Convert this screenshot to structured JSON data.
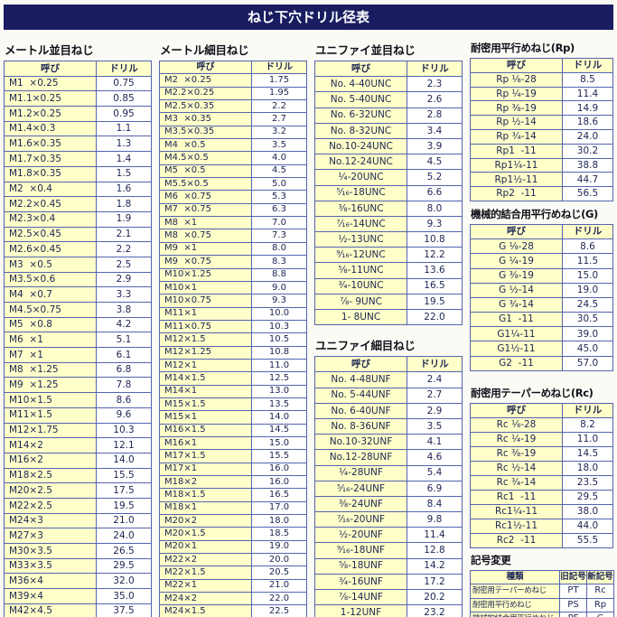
{
  "title": "ねじ下穴ドリル径表",
  "colors": {
    "title_bg": "#191d60",
    "title_text": "#ffffff",
    "header_bg": "#ffffc9",
    "border": "#5464b0",
    "text": "#1d2552",
    "heading_text": "#101019",
    "page_bg": "#fbfbf6"
  },
  "tables": {
    "metric_coarse": {
      "heading": "メートル並目ねじ",
      "col_headers": [
        "呼び",
        "ドリル"
      ],
      "rows": [
        [
          "M1  ×0.25",
          "0.75"
        ],
        [
          "M1.1×0.25",
          "0.85"
        ],
        [
          "M1.2×0.25",
          "0.95"
        ],
        [
          "M1.4×0.3",
          "1.1"
        ],
        [
          "M1.6×0.35",
          "1.3"
        ],
        [
          "M1.7×0.35",
          "1.4"
        ],
        [
          "M1.8×0.35",
          "1.5"
        ],
        [
          "M2  ×0.4",
          "1.6"
        ],
        [
          "M2.2×0.45",
          "1.8"
        ],
        [
          "M2.3×0.4",
          "1.9"
        ],
        [
          "M2.5×0.45",
          "2.1"
        ],
        [
          "M2.6×0.45",
          "2.2"
        ],
        [
          "M3  ×0.5",
          "2.5"
        ],
        [
          "M3.5×0.6",
          "2.9"
        ],
        [
          "M4  ×0.7",
          "3.3"
        ],
        [
          "M4.5×0.75",
          "3.8"
        ],
        [
          "M5  ×0.8",
          "4.2"
        ],
        [
          "M6  ×1",
          "5.1"
        ],
        [
          "M7  ×1",
          "6.1"
        ],
        [
          "M8  ×1.25",
          "6.8"
        ],
        [
          "M9  ×1.25",
          "7.8"
        ],
        [
          "M10×1.5",
          "8.6"
        ],
        [
          "M11×1.5",
          "9.6"
        ],
        [
          "M12×1.75",
          "10.3"
        ],
        [
          "M14×2",
          "12.1"
        ],
        [
          "M16×2",
          "14.0"
        ],
        [
          "M18×2.5",
          "15.5"
        ],
        [
          "M20×2.5",
          "17.5"
        ],
        [
          "M22×2.5",
          "19.5"
        ],
        [
          "M24×3",
          "21.0"
        ],
        [
          "M27×3",
          "24.0"
        ],
        [
          "M30×3.5",
          "26.5"
        ],
        [
          "M33×3.5",
          "29.5"
        ],
        [
          "M36×4",
          "32.0"
        ],
        [
          "M39×4",
          "35.0"
        ],
        [
          "M42×4.5",
          "37.5"
        ]
      ]
    },
    "metric_fine": {
      "heading": "メートル細目ねじ",
      "col_headers": [
        "呼び",
        "ドリル"
      ],
      "rows": [
        [
          "M2  ×0.25",
          "1.75"
        ],
        [
          "M2.2×0.25",
          "1.95"
        ],
        [
          "M2.5×0.35",
          "2.2"
        ],
        [
          "M3  ×0.35",
          "2.7"
        ],
        [
          "M3.5×0.35",
          "3.2"
        ],
        [
          "M4  ×0.5",
          "3.5"
        ],
        [
          "M4.5×0.5",
          "4.0"
        ],
        [
          "M5  ×0.5",
          "4.5"
        ],
        [
          "M5.5×0.5",
          "5.0"
        ],
        [
          "M6  ×0.75",
          "5.3"
        ],
        [
          "M7  ×0.75",
          "6.3"
        ],
        [
          "M8  ×1",
          "7.0"
        ],
        [
          "M8  ×0.75",
          "7.3"
        ],
        [
          "M9  ×1",
          "8.0"
        ],
        [
          "M9  ×0.75",
          "8.3"
        ],
        [
          "M10×1.25",
          "8.8"
        ],
        [
          "M10×1",
          "9.0"
        ],
        [
          "M10×0.75",
          "9.3"
        ],
        [
          "M11×1",
          "10.0"
        ],
        [
          "M11×0.75",
          "10.3"
        ],
        [
          "M12×1.5",
          "10.5"
        ],
        [
          "M12×1.25",
          "10.8"
        ],
        [
          "M12×1",
          "11.0"
        ],
        [
          "M14×1.5",
          "12.5"
        ],
        [
          "M14×1",
          "13.0"
        ],
        [
          "M15×1.5",
          "13.5"
        ],
        [
          "M15×1",
          "14.0"
        ],
        [
          "M16×1.5",
          "14.5"
        ],
        [
          "M16×1",
          "15.0"
        ],
        [
          "M17×1.5",
          "15.5"
        ],
        [
          "M17×1",
          "16.0"
        ],
        [
          "M18×2",
          "16.0"
        ],
        [
          "M18×1.5",
          "16.5"
        ],
        [
          "M18×1",
          "17.0"
        ],
        [
          "M20×2",
          "18.0"
        ],
        [
          "M20×1.5",
          "18.5"
        ],
        [
          "M20×1",
          "19.0"
        ],
        [
          "M22×2",
          "20.0"
        ],
        [
          "M22×1.5",
          "20.5"
        ],
        [
          "M22×1",
          "21.0"
        ],
        [
          "M24×2",
          "22.0"
        ],
        [
          "M24×1.5",
          "22.5"
        ]
      ]
    },
    "unified_coarse": {
      "heading": "ユニファイ並目ねじ",
      "col_headers": [
        "呼び",
        "ドリル"
      ],
      "rows": [
        [
          "No. 4-40UNC",
          "2.3"
        ],
        [
          "No. 5-40UNC",
          "2.6"
        ],
        [
          "No. 6-32UNC",
          "2.8"
        ],
        [
          "No. 8-32UNC",
          "3.4"
        ],
        [
          "No.10-24UNC",
          "3.9"
        ],
        [
          "No.12-24UNC",
          "4.5"
        ],
        [
          "¼-20UNC",
          "5.2"
        ],
        [
          "⁵⁄₁₆-18UNC",
          "6.6"
        ],
        [
          "⅜-16UNC",
          "8.0"
        ],
        [
          "⁷⁄₁₆-14UNC",
          "9.3"
        ],
        [
          "½-13UNC",
          "10.8"
        ],
        [
          "⁹⁄₁₆-12UNC",
          "12.2"
        ],
        [
          "⅝-11UNC",
          "13.6"
        ],
        [
          "¾-10UNC",
          "16.5"
        ],
        [
          "⅞- 9UNC",
          "19.5"
        ],
        [
          "1- 8UNC",
          "22.0"
        ]
      ]
    },
    "unified_fine": {
      "heading": "ユニファイ細目ねじ",
      "col_headers": [
        "呼び",
        "ドリル"
      ],
      "rows": [
        [
          "No. 4-48UNF",
          "2.4"
        ],
        [
          "No. 5-44UNF",
          "2.7"
        ],
        [
          "No. 6-40UNF",
          "2.9"
        ],
        [
          "No. 8-36UNF",
          "3.5"
        ],
        [
          "No.10-32UNF",
          "4.1"
        ],
        [
          "No.12-28UNF",
          "4.6"
        ],
        [
          "¼-28UNF",
          "5.4"
        ],
        [
          "⁵⁄₁₆-24UNF",
          "6.9"
        ],
        [
          "⅜-24UNF",
          "8.4"
        ],
        [
          "⁷⁄₁₆-20UNF",
          "9.8"
        ],
        [
          "½-20UNF",
          "11.4"
        ],
        [
          "⁹⁄₁₆-18UNF",
          "12.8"
        ],
        [
          "⅝-18UNF",
          "14.2"
        ],
        [
          "¾-16UNF",
          "17.2"
        ],
        [
          "⅞-14UNF",
          "20.2"
        ],
        [
          "1-12UNF",
          "23.2"
        ]
      ]
    },
    "rp": {
      "heading": "耐密用平行めねじ(Rp)",
      "col_headers": [
        "呼び",
        "ドリル"
      ],
      "rows": [
        [
          "Rp ⅛-28",
          "8.5"
        ],
        [
          "Rp ¼-19",
          "11.4"
        ],
        [
          "Rp ⅜-19",
          "14.9"
        ],
        [
          "Rp ½-14",
          "18.6"
        ],
        [
          "Rp ¾-14",
          "24.0"
        ],
        [
          "Rp1  -11",
          "30.2"
        ],
        [
          "Rp1¼-11",
          "38.8"
        ],
        [
          "Rp1½-11",
          "44.7"
        ],
        [
          "Rp2  -11",
          "56.5"
        ]
      ]
    },
    "g": {
      "heading": "機械的結合用平行めねじ(G)",
      "col_headers": [
        "呼び",
        "ドリル"
      ],
      "rows": [
        [
          "G ⅛-28",
          "8.6"
        ],
        [
          "G ¼-19",
          "11.5"
        ],
        [
          "G ⅜-19",
          "15.0"
        ],
        [
          "G ½-14",
          "19.0"
        ],
        [
          "G ¾-14",
          "24.5"
        ],
        [
          "G1  -11",
          "30.5"
        ],
        [
          "G1¼-11",
          "39.0"
        ],
        [
          "G1½-11",
          "45.0"
        ],
        [
          "G2  -11",
          "57.0"
        ]
      ]
    },
    "rc": {
      "heading": "耐密用テーパーめねじ(Rc)",
      "col_headers": [
        "呼び",
        "ドリル"
      ],
      "rows": [
        [
          "Rc ⅛-28",
          "8.2"
        ],
        [
          "Rc ¼-19",
          "11.0"
        ],
        [
          "Rc ⅜-19",
          "14.5"
        ],
        [
          "Rc ½-14",
          "18.0"
        ],
        [
          "Rc ¾-14",
          "23.5"
        ],
        [
          "Rc1  -11",
          "29.5"
        ],
        [
          "Rc1¼-11",
          "38.0"
        ],
        [
          "Rc1½-11",
          "44.0"
        ],
        [
          "Rc2  -11",
          "55.5"
        ]
      ]
    },
    "symbol_change": {
      "heading": "記号変更",
      "col_headers": [
        "種類",
        "旧記号",
        "新記号"
      ],
      "rows": [
        [
          "耐密用テーパーめねじ",
          "PT",
          "Rc"
        ],
        [
          "耐密用平行めねじ",
          "PS",
          "Rp"
        ],
        [
          "機械的結合用平行めねじ",
          "PF",
          "G"
        ]
      ]
    }
  }
}
